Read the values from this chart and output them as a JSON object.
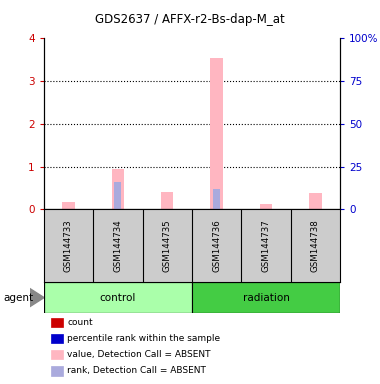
{
  "title": "GDS2637 / AFFX-r2-Bs-dap-M_at",
  "samples": [
    "GSM144733",
    "GSM144734",
    "GSM144735",
    "GSM144736",
    "GSM144737",
    "GSM144738"
  ],
  "pink_bar_heights": [
    0.18,
    0.95,
    0.4,
    3.55,
    0.12,
    0.38
  ],
  "blue_bar_heights_pct": [
    0.0,
    16.0,
    0.0,
    12.0,
    0.0,
    0.0
  ],
  "ylim_left": [
    0,
    4
  ],
  "ylim_right": [
    0,
    100
  ],
  "yticks_left": [
    0,
    1,
    2,
    3,
    4
  ],
  "ytick_labels_right": [
    "0",
    "25",
    "50",
    "75",
    "100%"
  ],
  "left_tick_color": "#CC0000",
  "right_tick_color": "#0000CC",
  "pink_color": "#FFB6C1",
  "blue_color": "#AAAADD",
  "red_color": "#CC0000",
  "dark_blue_color": "#0000CC",
  "legend_items": [
    {
      "color": "#CC0000",
      "label": "count"
    },
    {
      "color": "#0000CC",
      "label": "percentile rank within the sample"
    },
    {
      "color": "#FFB6C1",
      "label": "value, Detection Call = ABSENT"
    },
    {
      "color": "#AAAADD",
      "label": "rank, Detection Call = ABSENT"
    }
  ],
  "gray_box_color": "#CCCCCC",
  "control_green": "#AAFFAA",
  "radiation_green": "#44CC44",
  "agent_label": "agent"
}
